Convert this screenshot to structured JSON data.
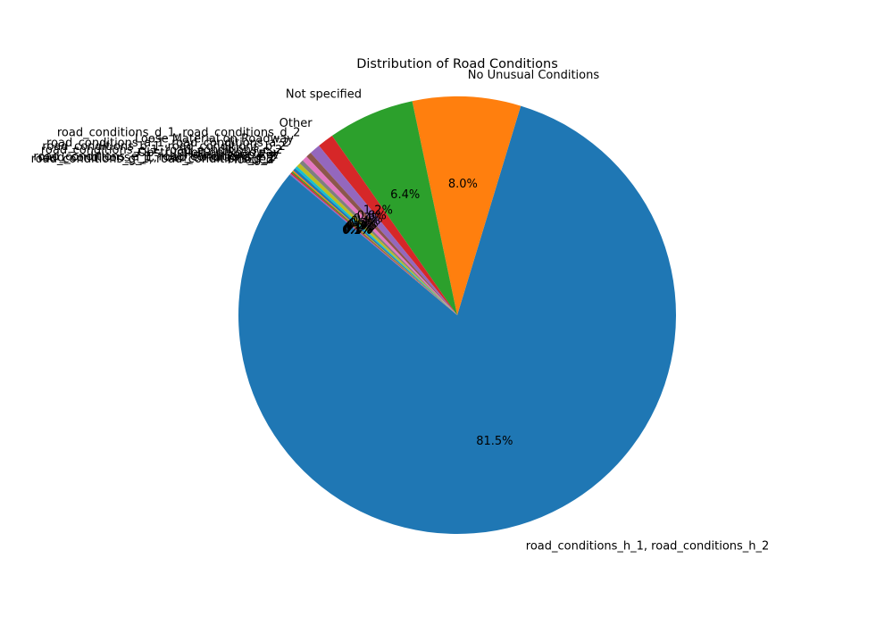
{
  "chart_data": {
    "type": "pie",
    "title": "Distribution of Road Conditions",
    "start_angle_deg": 140,
    "counterclockwise": true,
    "slices": [
      {
        "label": "road_conditions_h_1, road_conditions_h_2",
        "value": 81.5,
        "pct_text": "81.5%",
        "color": "#1f77b4"
      },
      {
        "label": "No Unusual Conditions",
        "value": 8.0,
        "pct_text": "8.0%",
        "color": "#ff7f0e"
      },
      {
        "label": "Not specified",
        "value": 6.4,
        "pct_text": "6.4%",
        "color": "#2ca02c"
      },
      {
        "label": "Other",
        "value": 1.2,
        "pct_text": "1.2%",
        "color": "#d62728"
      },
      {
        "label": "road_conditions_d_1, road_conditions_d_2",
        "value": 0.8,
        "pct_text": "0.8%",
        "color": "#9467bd"
      },
      {
        "label": "Loose Material on Roadway",
        "value": 0.4,
        "pct_text": "0.4%",
        "color": "#8c564b"
      },
      {
        "label": "road_conditions_a_1, road_conditions_a_2",
        "value": 0.4,
        "pct_text": "0.4%",
        "color": "#e377c2"
      },
      {
        "label": "road_conditions_b_1, road_conditions_b_2",
        "value": 0.3,
        "pct_text": "0.3%",
        "color": "#7f7f7f"
      },
      {
        "label": "road_conditions_c_1, road_conditions_c_2",
        "value": 0.3,
        "pct_text": "0.3%",
        "color": "#bcbd22"
      },
      {
        "label": "Obstruction on Roadway",
        "value": 0.2,
        "pct_text": "0.2%",
        "color": "#17becf"
      },
      {
        "label": "Holes, Deep Rut",
        "value": 0.2,
        "pct_text": "0.2%",
        "color": "#1f77b4"
      },
      {
        "label": "road_conditions_e_1, road_conditions_e_2",
        "value": 0.1,
        "pct_text": "0.1%",
        "color": "#ff7f0e"
      },
      {
        "label": "road_conditions_f_1, road_conditions_f_2",
        "value": 0.1,
        "pct_text": "0.1%",
        "color": "#2ca02c"
      },
      {
        "label": "road_conditions_g_1, road_conditions_g_2",
        "value": 0.1,
        "pct_text": "0.1%",
        "color": "#d62728"
      },
      {
        "label": "Flooded",
        "value": 0.1,
        "pct_text": "0.1%",
        "color": "#9467bd"
      }
    ]
  }
}
